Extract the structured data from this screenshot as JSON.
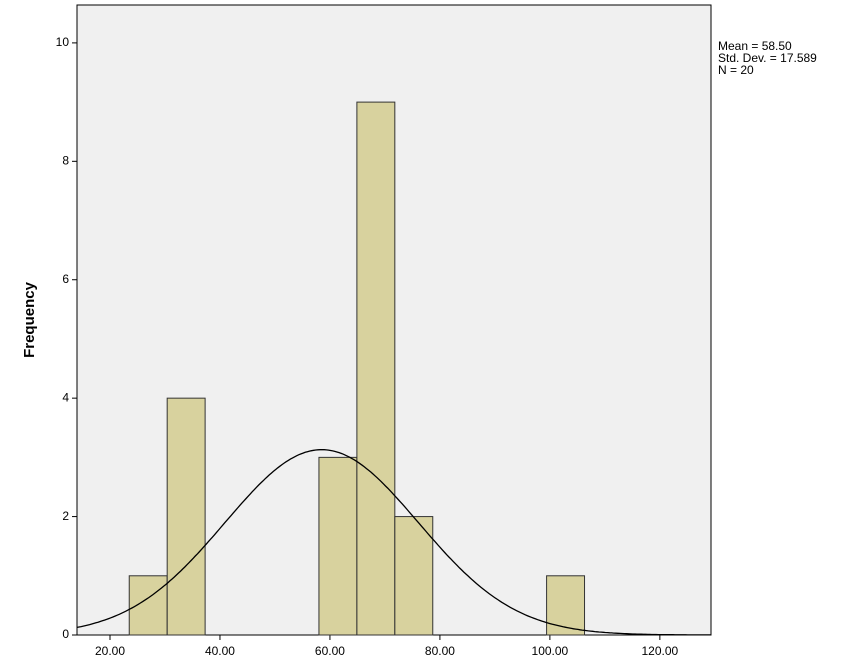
{
  "chart_data": {
    "type": "histogram",
    "y_label": "Frequency",
    "bins": [
      23.5,
      30.4,
      37.3,
      44.2,
      51.1,
      58.0,
      64.9,
      71.8,
      78.7,
      85.6,
      92.5,
      99.4,
      106.3
    ],
    "values": [
      1,
      4,
      0,
      0,
      0,
      3,
      9,
      2,
      0,
      0,
      0,
      1
    ],
    "color": "#d3cd8f",
    "xlim": [
      14,
      129.3
    ],
    "ylim": [
      0,
      10.64
    ],
    "xticks": [
      {
        "value": 20,
        "label": "20.00"
      },
      {
        "value": 40,
        "label": "40.00"
      },
      {
        "value": 60,
        "label": "60.00"
      },
      {
        "value": 80,
        "label": "80.00"
      },
      {
        "value": 100,
        "label": "100.00"
      },
      {
        "value": 120,
        "label": "120.00"
      }
    ],
    "yticks": [
      0,
      2,
      4,
      6,
      8,
      10
    ],
    "normal_curve": {
      "mean": {
        "value": 58.5,
        "label": "Mean = 58.50"
      },
      "sd": {
        "value": 17.589,
        "label": "Std. Dev. = 17.589"
      },
      "n": {
        "value": 20,
        "label": "N = 20"
      }
    }
  }
}
